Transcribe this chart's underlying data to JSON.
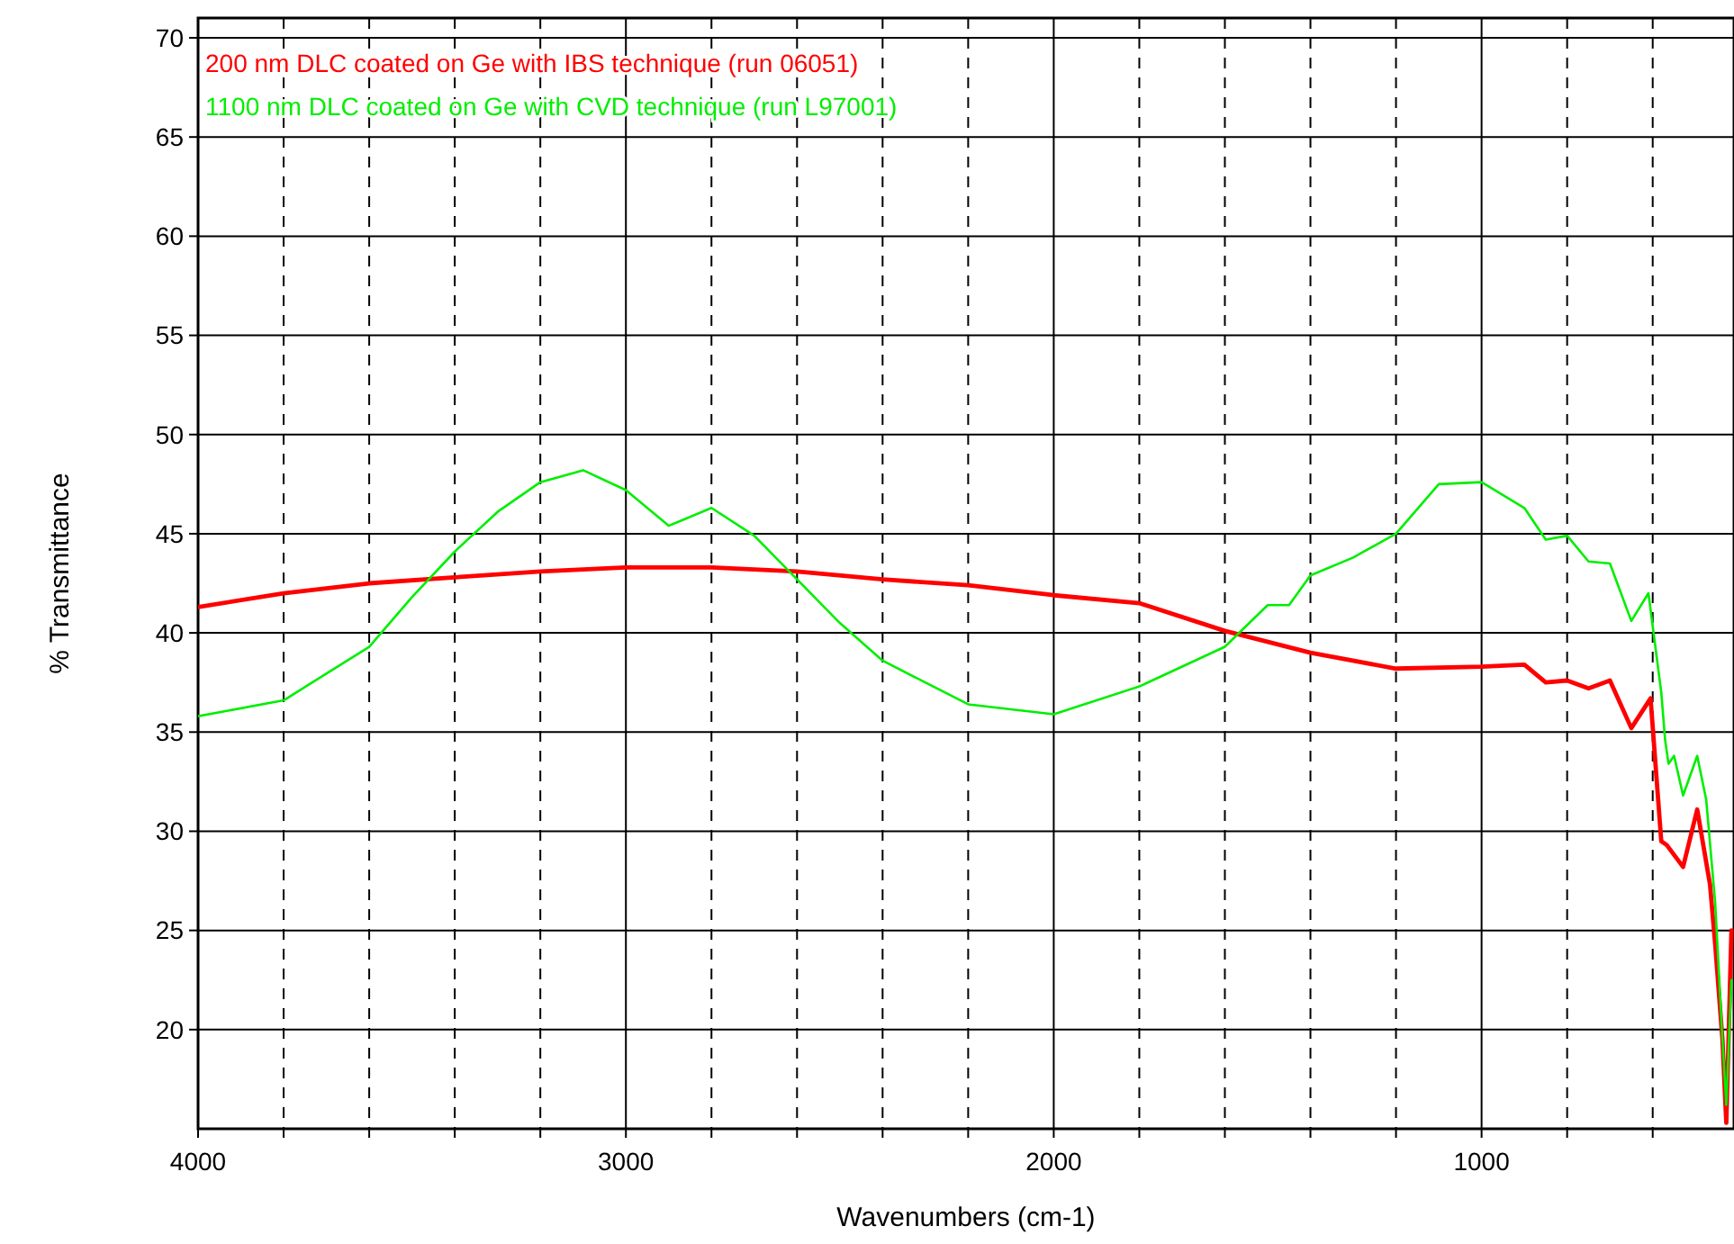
{
  "chart_data": {
    "type": "line",
    "xlabel": "Wavenumbers (cm-1)",
    "ylabel": "% Transmittance",
    "xlim": [
      4000,
      410
    ],
    "ylim": [
      15,
      71
    ],
    "xticks": [
      4000,
      {
        "value": 3800,
        "label": null
      },
      {
        "value": 3600,
        "label": null
      },
      {
        "value": 3400,
        "label": null
      },
      {
        "value": 3200,
        "label": null
      },
      3000,
      {
        "value": 2800,
        "label": null
      },
      {
        "value": 2600,
        "label": null
      },
      {
        "value": 2400,
        "label": null
      },
      {
        "value": 2200,
        "label": null
      },
      2000,
      {
        "value": 1800,
        "label": null
      },
      {
        "value": 1600,
        "label": null
      },
      {
        "value": 1400,
        "label": null
      },
      {
        "value": 1200,
        "label": null
      },
      1000,
      {
        "value": 800,
        "label": null
      },
      {
        "value": 600,
        "label": null
      }
    ],
    "yticks": [
      20,
      25,
      30,
      35,
      40,
      45,
      50,
      55,
      60,
      65,
      70
    ],
    "grid": true,
    "legend": "top left",
    "line_style": "solid",
    "marker": "none",
    "series": [
      {
        "name": "200 nm DLC coated on Ge with IBS technique (run 06051)",
        "color": "#ff0000",
        "x": [
          4000,
          3800,
          3600,
          3400,
          3200,
          3000,
          2800,
          2600,
          2400,
          2200,
          2000,
          1800,
          1600,
          1400,
          1200,
          1000,
          900,
          850,
          800,
          750,
          700,
          650,
          605,
          580,
          567,
          529,
          496,
          466,
          454,
          437,
          428,
          416
        ],
        "values": [
          41.3,
          42.0,
          42.5,
          42.8,
          43.1,
          43.3,
          43.3,
          43.1,
          42.7,
          42.4,
          41.9,
          41.5,
          40.1,
          39.0,
          38.2,
          38.3,
          38.4,
          37.5,
          37.6,
          37.2,
          37.6,
          35.2,
          36.7,
          29.5,
          29.3,
          28.2,
          31.1,
          27.3,
          24.3,
          19.5,
          15.3,
          25.0
        ]
      },
      {
        "name": "1100 nm DLC coated on Ge with CVD technique (run L97001)",
        "color": "#00ee00",
        "x": [
          4000,
          3800,
          3600,
          3500,
          3400,
          3300,
          3200,
          3100,
          3000,
          2900,
          2800,
          2700,
          2600,
          2500,
          2400,
          2200,
          2000,
          1800,
          1600,
          1500,
          1450,
          1400,
          1300,
          1200,
          1100,
          1000,
          900,
          850,
          800,
          750,
          700,
          650,
          610,
          580,
          571,
          563,
          550,
          529,
          496,
          475,
          454,
          437,
          428,
          416
        ],
        "values": [
          35.8,
          36.6,
          39.3,
          41.8,
          44.1,
          46.1,
          47.6,
          48.2,
          47.2,
          45.4,
          46.3,
          44.9,
          42.7,
          40.5,
          38.6,
          36.4,
          35.9,
          37.3,
          39.3,
          41.4,
          41.4,
          42.9,
          43.8,
          45.0,
          47.5,
          47.6,
          46.3,
          44.7,
          44.9,
          43.6,
          43.5,
          40.6,
          42.0,
          37.0,
          34.6,
          33.4,
          33.8,
          31.8,
          33.8,
          31.6,
          26.4,
          19.5,
          16.2,
          22.5
        ]
      }
    ]
  }
}
